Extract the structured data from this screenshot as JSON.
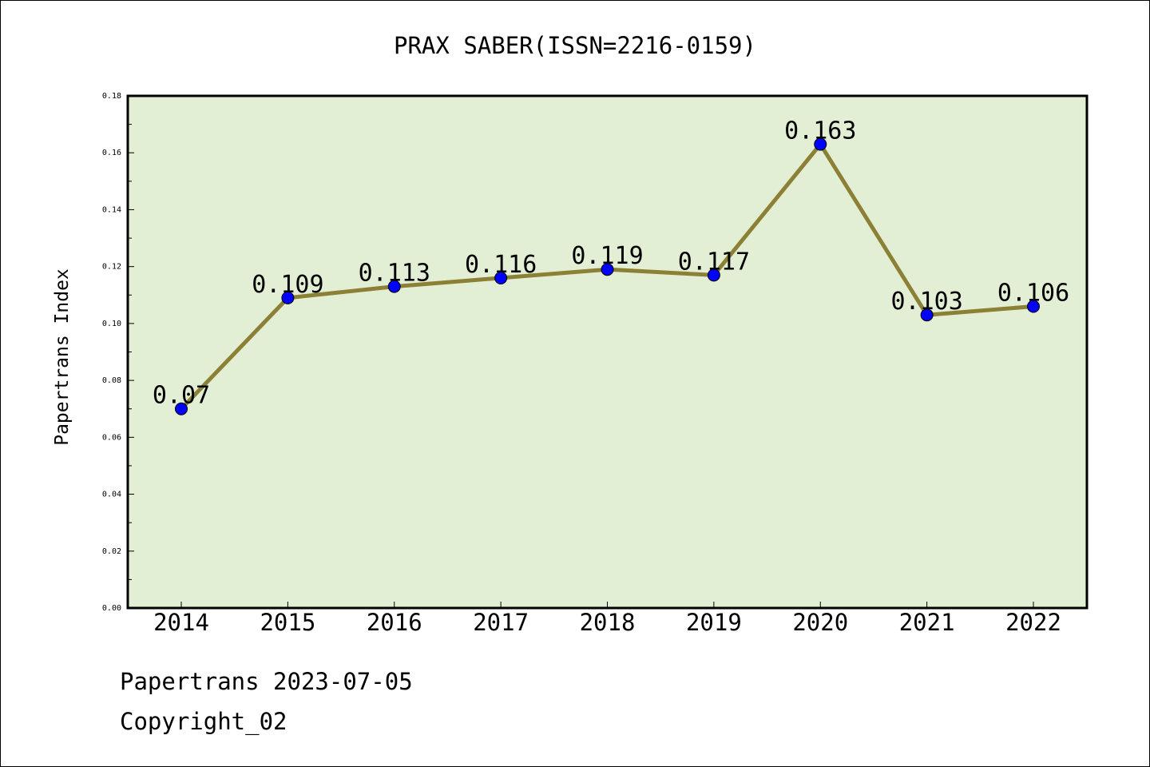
{
  "chart_data": {
    "type": "line",
    "title": "PRAX SABER(ISSN=2216-0159)",
    "xlabel": "",
    "ylabel": "Papertrans Index",
    "categories": [
      "2014",
      "2015",
      "2016",
      "2017",
      "2018",
      "2019",
      "2020",
      "2021",
      "2022"
    ],
    "series": [
      {
        "values": [
          0.07,
          0.109,
          0.113,
          0.116,
          0.119,
          0.117,
          0.163,
          0.103,
          0.106
        ],
        "labels": [
          "0.07",
          "0.109",
          "0.113",
          "0.116",
          "0.119",
          "0.117",
          "0.163",
          "0.103",
          "0.106"
        ]
      }
    ],
    "ylim": [
      0.0,
      0.18
    ],
    "yticks": [
      "0.00",
      "0.02",
      "0.04",
      "0.06",
      "0.08",
      "0.10",
      "0.12",
      "0.14",
      "0.16",
      "0.18"
    ],
    "grid": false,
    "colors": {
      "plot_background": "#e2efd4",
      "line": "#8b8035",
      "marker": "#0000ff"
    }
  },
  "footer": {
    "date_line": "Papertrans 2023-07-05",
    "copyright": "Copyright_02"
  }
}
